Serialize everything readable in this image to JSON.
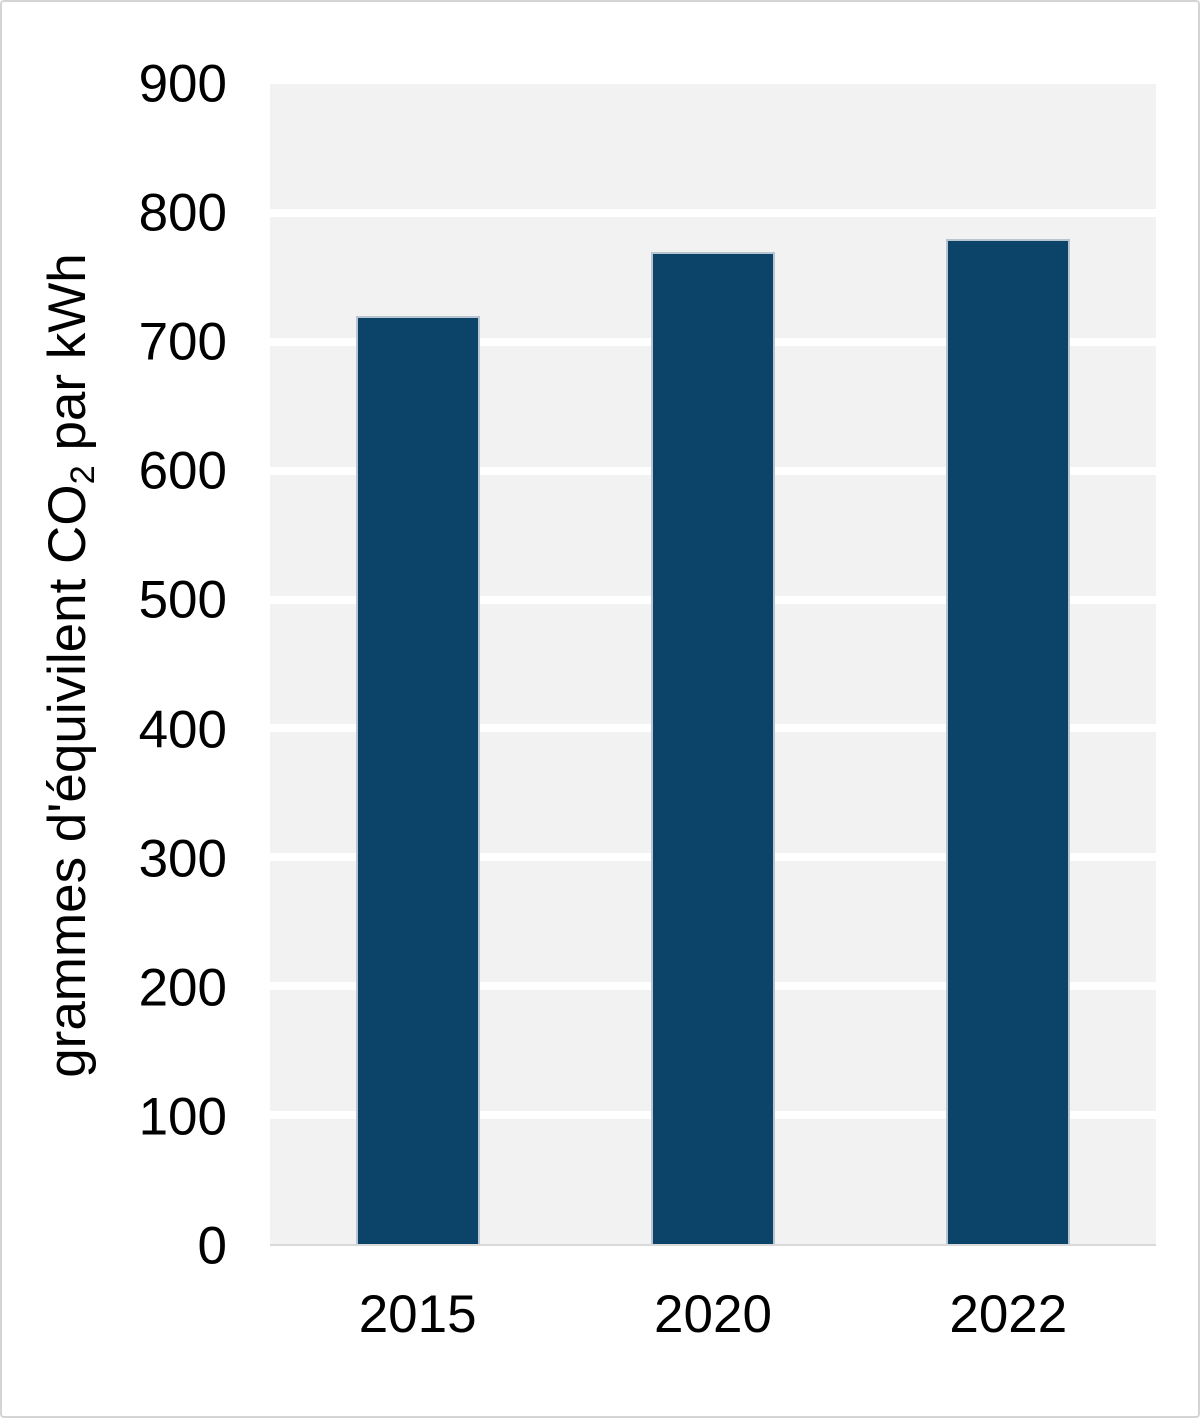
{
  "chart_data": {
    "type": "bar",
    "title": "",
    "xlabel": "",
    "ylabel": "grammes d'équivilent CO2 par kWh",
    "ylabel_parts": {
      "prefix": "grammes d'équivilent CO",
      "subscript": "2",
      "suffix": " par kWh"
    },
    "categories": [
      "2015",
      "2020",
      "2022"
    ],
    "values": [
      720,
      770,
      780
    ],
    "series": [
      {
        "name": "grammes d'équivilent CO2 par kWh",
        "values": [
          720,
          770,
          780
        ]
      }
    ],
    "ylim": [
      0,
      900
    ],
    "ytick_step": 100,
    "yticks": [
      0,
      100,
      200,
      300,
      400,
      500,
      600,
      700,
      800,
      900
    ],
    "grid": "horizontal white major gridlines on gray plot background",
    "legend_position": "none",
    "colors": {
      "bar_fill": "#0b4369",
      "bar_border": "#b9c6d1",
      "plot_background": "#f2f2f2",
      "gridline": "#ffffff",
      "axis_line": "#d9d9d9",
      "text": "#000000",
      "frame_border": "#d4d4d4",
      "page_background": "#ffffff"
    }
  }
}
